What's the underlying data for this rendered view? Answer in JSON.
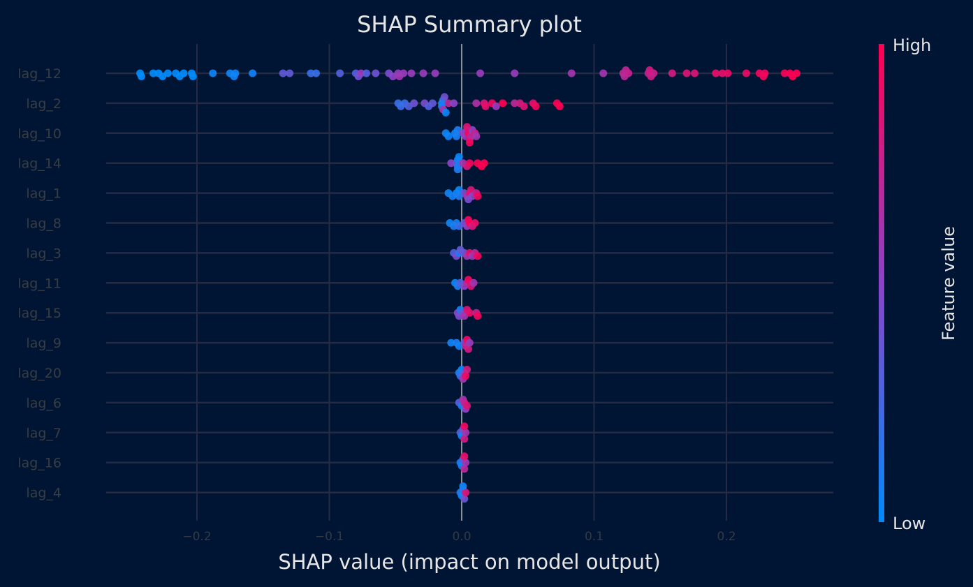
{
  "chart_data": {
    "type": "scatter",
    "subtype": "shap-beeswarm",
    "title": "SHAP Summary plot",
    "xlabel": "SHAP value (impact on model output)",
    "xlim": [
      -0.27,
      0.28
    ],
    "xticks": [
      -0.2,
      -0.1,
      0.0,
      0.1,
      0.2
    ],
    "xtick_labels": [
      "−0.2",
      "−0.1",
      "0.0",
      "0.1",
      "0.2"
    ],
    "grid": true,
    "colorbar": {
      "label": "Feature value",
      "high_label": "High",
      "low_label": "Low",
      "low_color": "#008bfb",
      "mid_color": "#8b44c8",
      "high_color": "#ff0052"
    },
    "features": [
      {
        "name": "lag_12",
        "points": [
          [
            -0.243,
            0.0
          ],
          [
            -0.242,
            0.0
          ],
          [
            -0.233,
            0.0
          ],
          [
            -0.229,
            0.0
          ],
          [
            -0.226,
            0.0
          ],
          [
            -0.222,
            0.0
          ],
          [
            -0.216,
            0.0
          ],
          [
            -0.213,
            0.0
          ],
          [
            -0.21,
            0.0
          ],
          [
            -0.204,
            0.0
          ],
          [
            -0.203,
            0.0
          ],
          [
            -0.188,
            0.05
          ],
          [
            -0.175,
            0.05
          ],
          [
            -0.172,
            0.05
          ],
          [
            -0.171,
            0.05
          ],
          [
            -0.158,
            0.06
          ],
          [
            -0.135,
            0.35
          ],
          [
            -0.13,
            0.35
          ],
          [
            -0.114,
            0.2
          ],
          [
            -0.11,
            0.2
          ],
          [
            -0.092,
            0.3
          ],
          [
            -0.08,
            0.3
          ],
          [
            -0.078,
            0.4
          ],
          [
            -0.076,
            0.55
          ],
          [
            -0.072,
            0.3
          ],
          [
            -0.065,
            0.4
          ],
          [
            -0.055,
            0.45
          ],
          [
            -0.052,
            0.5
          ],
          [
            -0.048,
            0.55
          ],
          [
            -0.047,
            0.6
          ],
          [
            -0.044,
            0.55
          ],
          [
            -0.038,
            0.55
          ],
          [
            -0.029,
            0.55
          ],
          [
            -0.02,
            0.55
          ],
          [
            0.014,
            0.55
          ],
          [
            0.04,
            0.55
          ],
          [
            0.083,
            0.6
          ],
          [
            0.107,
            0.6
          ],
          [
            0.122,
            0.7
          ],
          [
            0.123,
            0.7
          ],
          [
            0.124,
            0.72
          ],
          [
            0.126,
            0.74
          ],
          [
            0.141,
            0.75
          ],
          [
            0.143,
            0.78
          ],
          [
            0.145,
            0.75
          ],
          [
            0.142,
            0.8
          ],
          [
            0.159,
            0.8
          ],
          [
            0.17,
            0.85
          ],
          [
            0.176,
            0.85
          ],
          [
            0.192,
            0.9
          ],
          [
            0.197,
            0.9
          ],
          [
            0.201,
            0.92
          ],
          [
            0.215,
            0.92
          ],
          [
            0.225,
            0.95
          ],
          [
            0.228,
            0.95
          ],
          [
            0.229,
            0.95
          ],
          [
            0.244,
            0.97
          ],
          [
            0.248,
            1.0
          ],
          [
            0.25,
            1.0
          ],
          [
            0.253,
            1.0
          ]
        ]
      },
      {
        "name": "lag_2",
        "points": [
          [
            -0.048,
            0.2
          ],
          [
            -0.046,
            0.2
          ],
          [
            -0.043,
            0.2
          ],
          [
            -0.04,
            0.3
          ],
          [
            -0.036,
            0.4
          ],
          [
            -0.028,
            0.45
          ],
          [
            -0.025,
            0.3
          ],
          [
            -0.022,
            0.35
          ],
          [
            -0.015,
            0.05
          ],
          [
            -0.015,
            0.08
          ],
          [
            -0.014,
            0.1
          ],
          [
            -0.014,
            0.6
          ],
          [
            -0.013,
            0.4
          ],
          [
            -0.012,
            0.05
          ],
          [
            -0.01,
            0.7
          ],
          [
            -0.006,
            0.5
          ],
          [
            0.011,
            0.65
          ],
          [
            0.017,
            0.85
          ],
          [
            0.018,
            0.9
          ],
          [
            0.023,
            0.95
          ],
          [
            0.026,
            0.55
          ],
          [
            0.031,
            1.0
          ],
          [
            0.04,
            0.7
          ],
          [
            0.044,
            0.8
          ],
          [
            0.047,
            0.85
          ],
          [
            0.054,
            0.9
          ],
          [
            0.056,
            0.95
          ],
          [
            0.072,
            1.0
          ],
          [
            0.074,
            1.0
          ]
        ]
      },
      {
        "name": "lag_10",
        "points": [
          [
            -0.012,
            0.05
          ],
          [
            -0.01,
            0.05
          ],
          [
            -0.005,
            0.05
          ],
          [
            -0.004,
            0.08
          ],
          [
            -0.003,
            0.1
          ],
          [
            0.001,
            0.5
          ],
          [
            0.003,
            0.55
          ],
          [
            0.004,
            0.6
          ],
          [
            0.005,
            0.95
          ],
          [
            0.006,
            0.9
          ],
          [
            0.007,
            0.7
          ],
          [
            0.008,
            0.5
          ],
          [
            0.01,
            0.75
          ],
          [
            0.011,
            0.6
          ],
          [
            0.004,
            0.85
          ],
          [
            0.006,
            0.95
          ]
        ]
      },
      {
        "name": "lag_14",
        "points": [
          [
            -0.008,
            0.5
          ],
          [
            -0.004,
            0.45
          ],
          [
            -0.003,
            0.1
          ],
          [
            -0.003,
            0.08
          ],
          [
            -0.003,
            0.1
          ],
          [
            -0.002,
            0.05
          ],
          [
            0.001,
            0.6
          ],
          [
            0.004,
            0.8
          ],
          [
            0.006,
            0.95
          ],
          [
            0.012,
            1.0
          ],
          [
            0.015,
            1.0
          ],
          [
            0.017,
            1.0
          ]
        ]
      },
      {
        "name": "lag_1",
        "points": [
          [
            -0.01,
            0.05
          ],
          [
            -0.007,
            0.08
          ],
          [
            -0.004,
            0.05
          ],
          [
            -0.002,
            0.1
          ],
          [
            -0.002,
            0.05
          ],
          [
            0.002,
            0.4
          ],
          [
            0.004,
            0.6
          ],
          [
            0.006,
            0.9
          ],
          [
            0.007,
            0.85
          ],
          [
            0.008,
            0.5
          ],
          [
            0.011,
            0.75
          ],
          [
            0.012,
            0.95
          ],
          [
            0.005,
            0.45
          ]
        ]
      },
      {
        "name": "lag_8",
        "points": [
          [
            -0.009,
            0.05
          ],
          [
            -0.006,
            0.1
          ],
          [
            -0.004,
            0.08
          ],
          [
            -0.002,
            0.2
          ],
          [
            0.002,
            0.4
          ],
          [
            0.004,
            0.55
          ],
          [
            0.005,
            0.95
          ],
          [
            0.006,
            1.0
          ],
          [
            0.008,
            0.8
          ],
          [
            0.01,
            0.9
          ]
        ]
      },
      {
        "name": "lag_3",
        "points": [
          [
            -0.006,
            0.3
          ],
          [
            -0.004,
            0.45
          ],
          [
            -0.002,
            0.1
          ],
          [
            -0.001,
            0.35
          ],
          [
            0.002,
            0.4
          ],
          [
            0.004,
            0.6
          ],
          [
            0.006,
            0.9
          ],
          [
            0.008,
            0.55
          ],
          [
            0.01,
            0.7
          ],
          [
            0.012,
            0.95
          ]
        ]
      },
      {
        "name": "lag_11",
        "points": [
          [
            -0.005,
            0.05
          ],
          [
            -0.003,
            0.1
          ],
          [
            -0.001,
            0.3
          ],
          [
            0.002,
            0.5
          ],
          [
            0.004,
            0.7
          ],
          [
            0.005,
            0.95
          ],
          [
            0.007,
            0.85
          ],
          [
            0.009,
            0.6
          ]
        ]
      },
      {
        "name": "lag_15",
        "points": [
          [
            -0.003,
            0.5
          ],
          [
            -0.002,
            0.45
          ],
          [
            -0.001,
            0.1
          ],
          [
            0.001,
            0.4
          ],
          [
            0.002,
            0.6
          ],
          [
            0.004,
            0.85
          ],
          [
            0.006,
            0.9
          ],
          [
            0.011,
            0.75
          ],
          [
            0.012,
            0.95
          ]
        ]
      },
      {
        "name": "lag_9",
        "points": [
          [
            -0.008,
            0.05
          ],
          [
            -0.004,
            0.1
          ],
          [
            -0.002,
            0.05
          ],
          [
            0.002,
            0.4
          ],
          [
            0.003,
            0.7
          ],
          [
            0.004,
            0.95
          ],
          [
            0.005,
            0.8
          ],
          [
            0.006,
            0.55
          ]
        ]
      },
      {
        "name": "lag_20",
        "points": [
          [
            -0.002,
            0.1
          ],
          [
            -0.001,
            0.2
          ],
          [
            0.0,
            0.05
          ],
          [
            0.001,
            0.6
          ],
          [
            0.002,
            0.4
          ],
          [
            0.003,
            0.95
          ],
          [
            0.004,
            0.8
          ]
        ]
      },
      {
        "name": "lag_6",
        "points": [
          [
            -0.002,
            0.3
          ],
          [
            0.0,
            0.1
          ],
          [
            0.001,
            0.6
          ],
          [
            0.002,
            0.75
          ],
          [
            0.003,
            0.5
          ],
          [
            0.004,
            0.85
          ]
        ]
      },
      {
        "name": "lag_7",
        "points": [
          [
            -0.001,
            0.3
          ],
          [
            0.0,
            0.05
          ],
          [
            0.001,
            0.4
          ],
          [
            0.002,
            0.8
          ],
          [
            0.003,
            0.6
          ],
          [
            0.002,
            0.95
          ]
        ]
      },
      {
        "name": "lag_16",
        "points": [
          [
            -0.001,
            0.1
          ],
          [
            0.0,
            0.05
          ],
          [
            0.001,
            0.3
          ],
          [
            0.002,
            0.7
          ],
          [
            0.003,
            0.6
          ],
          [
            0.002,
            0.9
          ]
        ]
      },
      {
        "name": "lag_4",
        "points": [
          [
            -0.001,
            0.1
          ],
          [
            0.0,
            0.05
          ],
          [
            0.001,
            0.2
          ],
          [
            0.002,
            0.4
          ],
          [
            0.003,
            0.85
          ],
          [
            0.001,
            0.05
          ]
        ]
      }
    ]
  }
}
